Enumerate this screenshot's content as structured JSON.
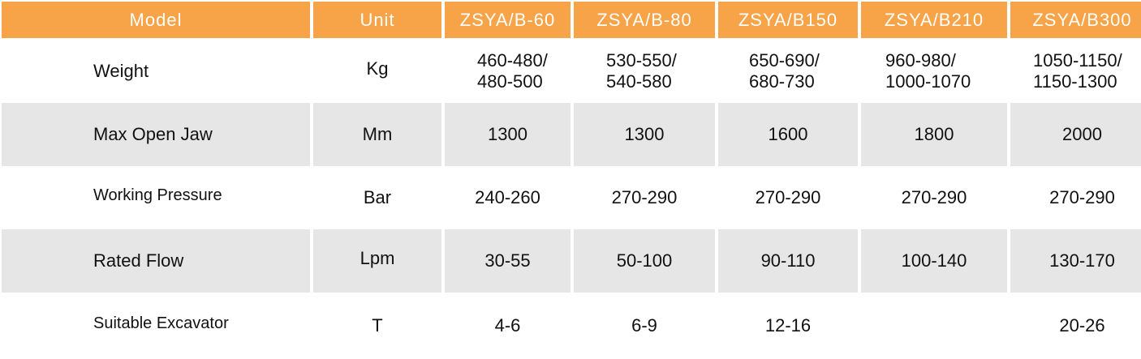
{
  "headers": [
    "Model",
    "Unit",
    "ZSYA/B-60",
    "ZSYA/B-80",
    "ZSYA/B150",
    "ZSYA/B210",
    "ZSYA/B300"
  ],
  "rows": [
    {
      "label": "Weight",
      "unit": "Kg",
      "values": [
        "460-480/\n480-500",
        "530-550/\n540-580",
        "650-690/\n680-730",
        "960-980/\n1000-1070",
        "1050-1150/\n1150-1300"
      ]
    },
    {
      "label": "Max Open Jaw",
      "unit": "Mm",
      "values": [
        "1300",
        "1300",
        "1600",
        "1800",
        "2000"
      ]
    },
    {
      "label": "Working Pressure",
      "unit": "Bar",
      "values": [
        "240-260",
        "270-290",
        "270-290",
        "270-290",
        "270-290"
      ]
    },
    {
      "label": "Rated Flow",
      "unit": "Lpm",
      "values": [
        "30-55",
        "50-100",
        "90-110",
        "100-140",
        "130-170"
      ]
    },
    {
      "label": "Suitable Excavator",
      "unit": "T",
      "values": [
        "4-6",
        "6-9",
        "12-16",
        "",
        "20-26"
      ]
    }
  ],
  "colors": {
    "header": "#f7a347",
    "shade": "#e6e6e6"
  }
}
